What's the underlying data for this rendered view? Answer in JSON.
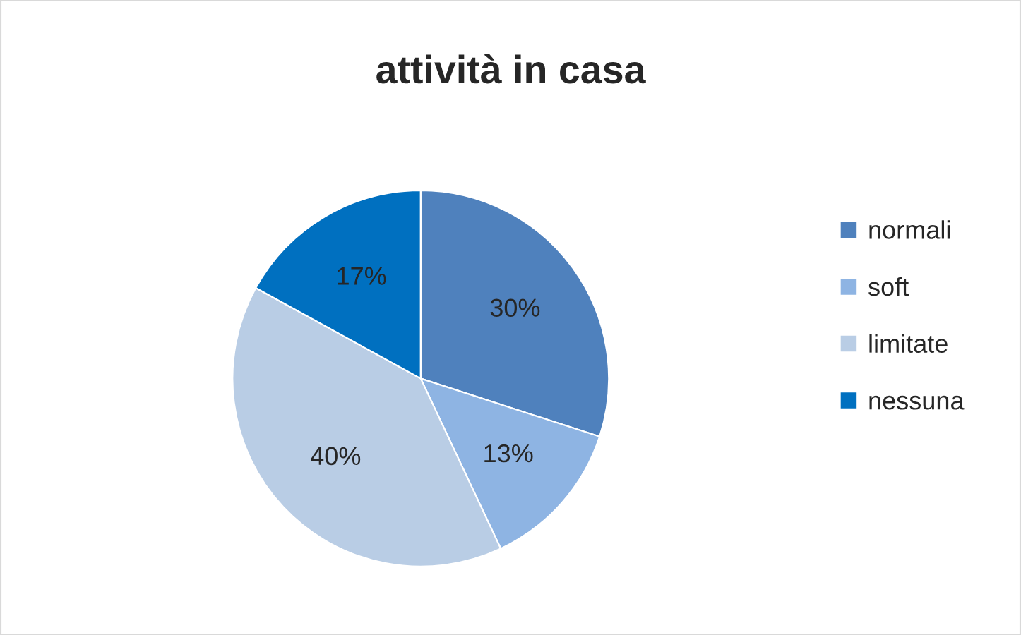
{
  "chart_data": {
    "type": "pie",
    "title": "attività in casa",
    "categories": [
      "normali",
      "soft",
      "limitate",
      "nessuna"
    ],
    "values": [
      30,
      13,
      40,
      17
    ],
    "colors": [
      "#4f81bd",
      "#8eb4e3",
      "#b9cde5",
      "#0070c0"
    ],
    "value_labels": [
      "30%",
      "13%",
      "40%",
      "17%"
    ],
    "legend": "right"
  }
}
